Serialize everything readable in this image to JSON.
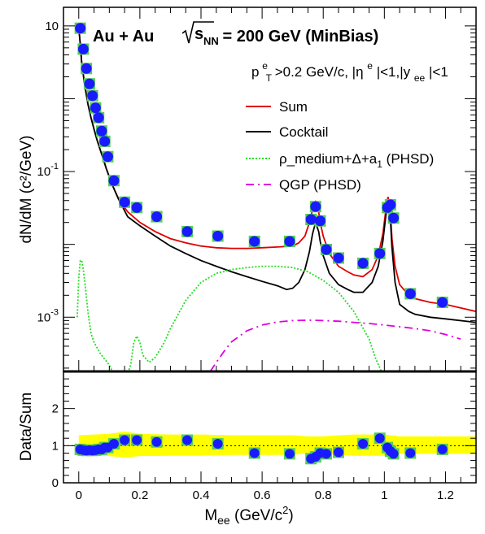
{
  "chart_data": [
    {
      "type": "line",
      "panel": "upper",
      "title": "Au + Au",
      "energy_label": "200 GeV (MinBias)",
      "energy_sqrt": "s",
      "energy_sub": "NN",
      "energy_eq": " = ",
      "cuts_label": {
        "p": "p",
        "pT_sup": "e",
        "pT_sub": "T",
        "rest1": ">0.2 GeV/c, |η",
        "eta_sup": "e",
        "rest2": "|<1,|y",
        "y_sub": "ee",
        "rest3": "|<1"
      },
      "ylabel": "dN/dM (c²/GeV)",
      "y_scale": "log",
      "xlim": [
        -0.05,
        1.3
      ],
      "ylim": [
        0.00018,
        18
      ],
      "y_tick_labels": [
        {
          "value": 10,
          "base": "10",
          "exp": ""
        },
        {
          "value": 0.1,
          "base": "10",
          "exp": "-1"
        },
        {
          "value": 0.001,
          "base": "10",
          "exp": "-3"
        }
      ],
      "legend": {
        "placement": "top-right",
        "entries": [
          {
            "label": "Sum",
            "color": "#e00000",
            "style": "solid"
          },
          {
            "label": "Cocktail",
            "color": "#000000",
            "style": "solid"
          },
          {
            "label_main": "ρ_medium+Δ+a",
            "label_sub": "1",
            "label_tail": " (PHSD)",
            "color": "#22dd22",
            "style": "dotted"
          },
          {
            "label": "QGP (PHSD)",
            "color": "#e000e0",
            "style": "dash"
          }
        ]
      },
      "series": [
        {
          "key": "sum",
          "color": "#e00000",
          "style": "solid",
          "x": [
            0.0,
            0.005,
            0.01,
            0.02,
            0.03,
            0.04,
            0.05,
            0.06,
            0.07,
            0.08,
            0.09,
            0.1,
            0.11,
            0.13,
            0.16,
            0.2,
            0.25,
            0.3,
            0.35,
            0.4,
            0.45,
            0.5,
            0.55,
            0.6,
            0.65,
            0.7,
            0.72,
            0.74,
            0.755,
            0.765,
            0.775,
            0.785,
            0.79,
            0.8,
            0.82,
            0.85,
            0.88,
            0.9,
            0.93,
            0.96,
            0.98,
            0.995,
            1.005,
            1.012,
            1.019,
            1.025,
            1.035,
            1.05,
            1.08,
            1.1,
            1.15,
            1.2,
            1.3
          ],
          "y": [
            9.5,
            5.5,
            3.0,
            1.5,
            0.85,
            0.55,
            0.38,
            0.27,
            0.2,
            0.15,
            0.11,
            0.085,
            0.065,
            0.042,
            0.028,
            0.02,
            0.015,
            0.012,
            0.0105,
            0.0095,
            0.009,
            0.0088,
            0.0088,
            0.009,
            0.0092,
            0.0095,
            0.0105,
            0.013,
            0.02,
            0.03,
            0.038,
            0.028,
            0.02,
            0.013,
            0.0075,
            0.005,
            0.0042,
            0.0038,
            0.0036,
            0.0045,
            0.007,
            0.014,
            0.03,
            0.045,
            0.03,
            0.012,
            0.005,
            0.0028,
            0.002,
            0.0018,
            0.0016,
            0.0015,
            0.0012
          ]
        },
        {
          "key": "cocktail",
          "color": "#000000",
          "style": "solid",
          "x": [
            0.0,
            0.005,
            0.01,
            0.02,
            0.03,
            0.04,
            0.05,
            0.06,
            0.07,
            0.08,
            0.09,
            0.1,
            0.11,
            0.13,
            0.16,
            0.2,
            0.25,
            0.3,
            0.35,
            0.4,
            0.45,
            0.5,
            0.55,
            0.6,
            0.65,
            0.68,
            0.7,
            0.72,
            0.74,
            0.755,
            0.765,
            0.775,
            0.785,
            0.79,
            0.8,
            0.82,
            0.85,
            0.88,
            0.9,
            0.93,
            0.96,
            0.98,
            0.995,
            1.005,
            1.012,
            1.019,
            1.025,
            1.035,
            1.05,
            1.08,
            1.1,
            1.15,
            1.2,
            1.3
          ],
          "y": [
            9.5,
            5.5,
            3.0,
            1.5,
            0.85,
            0.55,
            0.38,
            0.27,
            0.2,
            0.15,
            0.11,
            0.085,
            0.065,
            0.042,
            0.024,
            0.018,
            0.013,
            0.0095,
            0.0075,
            0.006,
            0.005,
            0.0042,
            0.0036,
            0.0031,
            0.0027,
            0.0024,
            0.0025,
            0.003,
            0.0045,
            0.008,
            0.014,
            0.02,
            0.015,
            0.011,
            0.007,
            0.004,
            0.0028,
            0.0024,
            0.0022,
            0.0022,
            0.003,
            0.005,
            0.011,
            0.025,
            0.04,
            0.025,
            0.009,
            0.003,
            0.0015,
            0.0012,
            0.0011,
            0.001,
            0.00095,
            0.00085
          ]
        },
        {
          "key": "rho_medium",
          "color": "#22dd22",
          "style": "dotted",
          "x": [
            -0.005,
            0.0,
            0.005,
            0.01,
            0.015,
            0.02,
            0.03,
            0.04,
            0.05,
            0.06,
            0.07,
            0.08,
            0.09,
            0.1,
            0.11,
            0.12,
            0.13,
            0.15,
            0.17,
            0.18,
            0.19,
            0.2,
            0.21,
            0.23,
            0.25,
            0.28,
            0.3,
            0.35,
            0.4,
            0.45,
            0.5,
            0.55,
            0.6,
            0.65,
            0.7,
            0.75,
            0.8,
            0.85,
            0.9,
            0.95,
            0.97,
            0.99
          ],
          "y": [
            0.001,
            0.0035,
            0.006,
            0.006,
            0.0045,
            0.003,
            0.0012,
            0.0006,
            0.00045,
            0.00038,
            0.00032,
            0.00028,
            0.00025,
            0.00022,
            0.00018,
            0.00016,
            0.00014,
            0.00013,
            0.00022,
            0.00045,
            0.00055,
            0.00045,
            0.0003,
            0.00024,
            0.00028,
            0.00045,
            0.0007,
            0.0017,
            0.003,
            0.004,
            0.0045,
            0.0048,
            0.005,
            0.005,
            0.0048,
            0.0042,
            0.0032,
            0.0022,
            0.0012,
            0.0005,
            0.00028,
            0.00018
          ]
        },
        {
          "key": "qgp",
          "color": "#e000e0",
          "style": "dash",
          "x": [
            0.43,
            0.45,
            0.48,
            0.5,
            0.55,
            0.6,
            0.65,
            0.7,
            0.75,
            0.8,
            0.85,
            0.9,
            0.95,
            1.0,
            1.05,
            1.1,
            1.15,
            1.2,
            1.25
          ],
          "y": [
            0.00018,
            0.00024,
            0.00036,
            0.00046,
            0.00065,
            0.00078,
            0.00086,
            0.0009,
            0.00091,
            0.0009,
            0.00088,
            0.00085,
            0.00082,
            0.00078,
            0.00074,
            0.0007,
            0.00065,
            0.00058,
            0.0005
          ]
        }
      ],
      "data_points": {
        "color": "#1a1aff",
        "syst_color": "#55cc55",
        "x": [
          0.005,
          0.015,
          0.025,
          0.035,
          0.045,
          0.055,
          0.065,
          0.075,
          0.085,
          0.095,
          0.115,
          0.15,
          0.19,
          0.255,
          0.355,
          0.455,
          0.575,
          0.69,
          0.76,
          0.775,
          0.79,
          0.81,
          0.85,
          0.93,
          0.985,
          1.01,
          1.02,
          1.03,
          1.085,
          1.19
        ],
        "y": [
          9.3,
          4.8,
          2.6,
          1.6,
          1.1,
          0.75,
          0.55,
          0.36,
          0.26,
          0.16,
          0.075,
          0.038,
          0.032,
          0.024,
          0.015,
          0.013,
          0.011,
          0.011,
          0.022,
          0.033,
          0.021,
          0.0085,
          0.0065,
          0.0055,
          0.0075,
          0.032,
          0.035,
          0.023,
          0.0021,
          0.0016
        ]
      }
    },
    {
      "type": "scatter",
      "panel": "lower",
      "ylabel": "Data/Sum",
      "xlabel_main": "M",
      "xlabel_sub": "ee",
      "xlabel_tail": " (GeV/c",
      "xlabel_sup": "2",
      "xlabel_close": ")",
      "xlim": [
        -0.05,
        1.3
      ],
      "ylim": [
        0,
        3
      ],
      "y_ticks": [
        0,
        1,
        2
      ],
      "y_tick_labels": [
        "0",
        "1",
        "2"
      ],
      "x_ticks": [
        0,
        0.2,
        0.4,
        0.6,
        0.8,
        1,
        1.2
      ],
      "x_tick_labels": [
        "0",
        "0.2",
        "0.4",
        "0.6",
        "0.8",
        "1",
        "1.2"
      ],
      "reference_line": 1,
      "band": {
        "color": "#ffff00",
        "x": [
          0.0,
          0.05,
          0.1,
          0.15,
          0.2,
          0.3,
          0.4,
          0.5,
          0.6,
          0.7,
          0.75,
          0.8,
          0.85,
          0.9,
          1.0,
          1.05,
          1.1,
          1.2,
          1.3
        ],
        "upper": [
          1.28,
          1.3,
          1.32,
          1.38,
          1.32,
          1.3,
          1.3,
          1.28,
          1.28,
          1.28,
          1.25,
          1.25,
          1.28,
          1.3,
          1.3,
          1.25,
          1.25,
          1.25,
          1.25
        ],
        "lower": [
          0.75,
          0.73,
          0.72,
          0.68,
          0.72,
          0.73,
          0.73,
          0.75,
          0.75,
          0.75,
          0.8,
          0.78,
          0.75,
          0.73,
          0.73,
          0.78,
          0.78,
          0.78,
          0.78
        ]
      },
      "points": {
        "x": [
          0.005,
          0.015,
          0.025,
          0.035,
          0.045,
          0.055,
          0.065,
          0.075,
          0.085,
          0.095,
          0.115,
          0.15,
          0.19,
          0.255,
          0.355,
          0.455,
          0.575,
          0.69,
          0.76,
          0.775,
          0.79,
          0.81,
          0.85,
          0.93,
          0.985,
          1.01,
          1.02,
          1.03,
          1.085,
          1.19
        ],
        "y": [
          0.9,
          0.88,
          0.87,
          0.88,
          0.87,
          0.88,
          0.9,
          0.9,
          0.95,
          0.95,
          1.05,
          1.15,
          1.15,
          1.1,
          1.15,
          1.05,
          0.8,
          0.78,
          0.65,
          0.7,
          0.8,
          0.78,
          0.82,
          1.05,
          1.2,
          0.95,
          0.85,
          0.78,
          0.8,
          0.9
        ],
        "yerr": [
          0.05,
          0.05,
          0.05,
          0.05,
          0.05,
          0.05,
          0.05,
          0.05,
          0.05,
          0.05,
          0.06,
          0.08,
          0.08,
          0.08,
          0.1,
          0.1,
          0.1,
          0.1,
          0.1,
          0.1,
          0.1,
          0.1,
          0.1,
          0.1,
          0.1,
          0.1,
          0.1,
          0.1,
          0.1,
          0.12
        ]
      }
    }
  ]
}
